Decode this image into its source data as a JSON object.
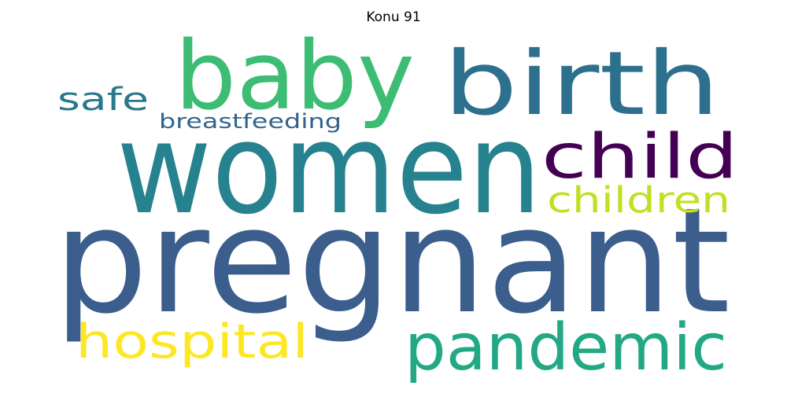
{
  "title": "Konu 91",
  "words": [
    {
      "text": "pregnant",
      "color": "#3b5e8c"
    },
    {
      "text": "women",
      "color": "#26828e"
    },
    {
      "text": "baby",
      "color": "#3dbc74"
    },
    {
      "text": "birth",
      "color": "#2d708e"
    },
    {
      "text": "child",
      "color": "#440154"
    },
    {
      "text": "pandemic",
      "color": "#22a884"
    },
    {
      "text": "hospital",
      "color": "#fde725"
    },
    {
      "text": "children",
      "color": "#c2df23"
    },
    {
      "text": "safe",
      "color": "#2a788e"
    },
    {
      "text": "breastfeeding",
      "color": "#33638d"
    }
  ]
}
